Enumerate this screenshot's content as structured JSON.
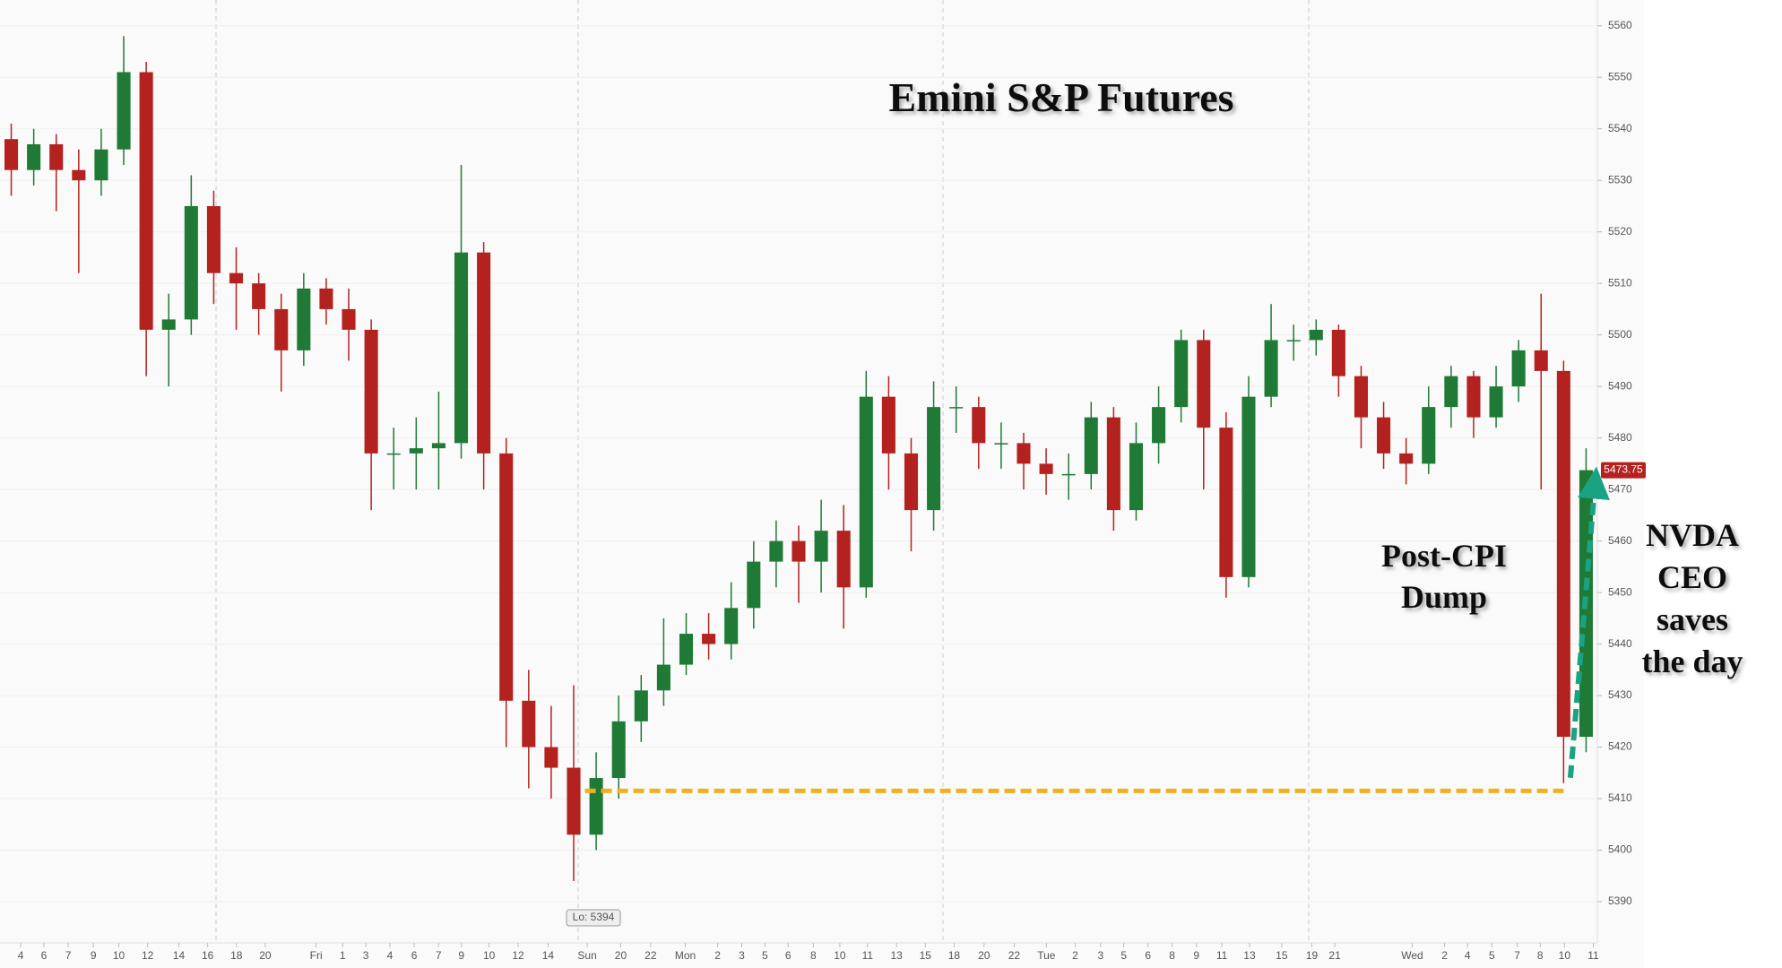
{
  "chart_data": {
    "type": "candlestick",
    "title": "Emini S&P Futures",
    "open": [
      5538,
      5532,
      5537,
      5532,
      5530,
      5536,
      5551,
      5501,
      5503,
      5525,
      5512,
      5510,
      5505,
      5497,
      5509,
      5505,
      5501,
      5477,
      5477,
      5478,
      5479,
      5516,
      5477,
      5429,
      5420,
      5416,
      5403,
      5414,
      5425,
      5431,
      5436,
      5442,
      5440,
      5447,
      5456,
      5460,
      5456,
      5462,
      5451,
      5488,
      5477,
      5466,
      5486,
      5486,
      5479,
      5479,
      5475,
      5473,
      5473,
      5484,
      5466,
      5479,
      5486,
      5499,
      5482,
      5453,
      5488,
      5499,
      5499,
      5501,
      5492,
      5484,
      5477,
      5475,
      5486,
      5492,
      5484,
      5490,
      5497,
      5493,
      5422
    ],
    "high": [
      5541,
      5540,
      5539,
      5536,
      5540,
      5558,
      5553,
      5508,
      5531,
      5528,
      5517,
      5512,
      5508,
      5512,
      5511,
      5509,
      5503,
      5482,
      5484,
      5489,
      5533,
      5518,
      5480,
      5435,
      5428,
      5432,
      5419,
      5430,
      5434,
      5445,
      5446,
      5446,
      5452,
      5460,
      5464,
      5463,
      5468,
      5467,
      5493,
      5492,
      5480,
      5491,
      5490,
      5488,
      5483,
      5481,
      5478,
      5477,
      5487,
      5486,
      5483,
      5490,
      5501,
      5501,
      5485,
      5492,
      5506,
      5502,
      5503,
      5502,
      5494,
      5487,
      5480,
      5490,
      5494,
      5493,
      5494,
      5499,
      5508,
      5495,
      5478
    ],
    "low": [
      5527,
      5529,
      5524,
      5512,
      5527,
      5533,
      5492,
      5490,
      5500,
      5506,
      5501,
      5500,
      5489,
      5494,
      5502,
      5495,
      5466,
      5470,
      5470,
      5470,
      5476,
      5470,
      5420,
      5412,
      5410,
      5394,
      5400,
      5410,
      5421,
      5428,
      5434,
      5437,
      5437,
      5443,
      5451,
      5448,
      5450,
      5443,
      5449,
      5470,
      5458,
      5462,
      5481,
      5474,
      5474,
      5470,
      5469,
      5468,
      5470,
      5462,
      5464,
      5475,
      5483,
      5470,
      5449,
      5451,
      5486,
      5495,
      5496,
      5488,
      5478,
      5474,
      5471,
      5473,
      5482,
      5480,
      5482,
      5487,
      5470,
      5413,
      5419
    ],
    "close": [
      5532,
      5537,
      5532,
      5530,
      5536,
      5551,
      5501,
      5503,
      5525,
      5512,
      5510,
      5505,
      5497,
      5509,
      5505,
      5501,
      5477,
      5477,
      5478,
      5479,
      5516,
      5477,
      5429,
      5420,
      5416,
      5403,
      5414,
      5425,
      5431,
      5436,
      5442,
      5440,
      5447,
      5456,
      5460,
      5456,
      5462,
      5451,
      5488,
      5477,
      5466,
      5486,
      5486,
      5479,
      5479,
      5475,
      5473,
      5473,
      5484,
      5466,
      5479,
      5486,
      5499,
      5482,
      5453,
      5488,
      5499,
      5499,
      5501,
      5492,
      5484,
      5477,
      5475,
      5486,
      5492,
      5484,
      5490,
      5497,
      5493,
      5422,
      5473.75
    ],
    "colors": {
      "up": "#1f7a35",
      "down": "#b3221f"
    },
    "xlim": [
      0,
      71
    ],
    "xticks": [
      {
        "value": 0.92,
        "label": "4"
      },
      {
        "value": 1.95,
        "label": "6"
      },
      {
        "value": 3.03,
        "label": "7"
      },
      {
        "value": 4.15,
        "label": "9"
      },
      {
        "value": 5.28,
        "label": "10"
      },
      {
        "value": 6.56,
        "label": "12"
      },
      {
        "value": 7.95,
        "label": "14"
      },
      {
        "value": 9.23,
        "label": "16"
      },
      {
        "value": 10.51,
        "label": "18"
      },
      {
        "value": 11.79,
        "label": "20"
      },
      {
        "value": 14.05,
        "label": "Fri"
      },
      {
        "value": 15.23,
        "label": "1"
      },
      {
        "value": 16.26,
        "label": "3"
      },
      {
        "value": 17.33,
        "label": "4"
      },
      {
        "value": 18.41,
        "label": "6"
      },
      {
        "value": 19.49,
        "label": "7"
      },
      {
        "value": 20.51,
        "label": "9"
      },
      {
        "value": 21.74,
        "label": "10"
      },
      {
        "value": 23.03,
        "label": "12"
      },
      {
        "value": 24.36,
        "label": "14"
      },
      {
        "value": 26.1,
        "label": "Sun"
      },
      {
        "value": 27.59,
        "label": "20"
      },
      {
        "value": 28.92,
        "label": "22"
      },
      {
        "value": 30.46,
        "label": "Mon"
      },
      {
        "value": 31.9,
        "label": "2"
      },
      {
        "value": 32.97,
        "label": "3"
      },
      {
        "value": 34,
        "label": "5"
      },
      {
        "value": 35.03,
        "label": "6"
      },
      {
        "value": 36.15,
        "label": "8"
      },
      {
        "value": 37.33,
        "label": "10"
      },
      {
        "value": 38.56,
        "label": "11"
      },
      {
        "value": 39.85,
        "label": "13"
      },
      {
        "value": 41.13,
        "label": "15"
      },
      {
        "value": 42.41,
        "label": "18"
      },
      {
        "value": 43.74,
        "label": "20"
      },
      {
        "value": 45.08,
        "label": "22"
      },
      {
        "value": 46.51,
        "label": "Tue"
      },
      {
        "value": 47.79,
        "label": "2"
      },
      {
        "value": 48.92,
        "label": "3"
      },
      {
        "value": 49.95,
        "label": "5"
      },
      {
        "value": 51.03,
        "label": "6"
      },
      {
        "value": 52.1,
        "label": "8"
      },
      {
        "value": 53.18,
        "label": "9"
      },
      {
        "value": 54.31,
        "label": "11"
      },
      {
        "value": 55.54,
        "label": "13"
      },
      {
        "value": 56.97,
        "label": "15"
      },
      {
        "value": 58.31,
        "label": "19"
      },
      {
        "value": 59.33,
        "label": "21"
      },
      {
        "value": 62.77,
        "label": "Wed"
      },
      {
        "value": 64.21,
        "label": "2"
      },
      {
        "value": 65.23,
        "label": "4"
      },
      {
        "value": 66.31,
        "label": "5"
      },
      {
        "value": 67.44,
        "label": "7"
      },
      {
        "value": 68.46,
        "label": "8"
      },
      {
        "value": 69.54,
        "label": "10"
      },
      {
        "value": 70.82,
        "label": "11"
      }
    ],
    "ylim": [
      5382,
      5565
    ],
    "yticks": [
      5390,
      5400,
      5410,
      5420,
      5430,
      5440,
      5450,
      5460,
      5470,
      5480,
      5490,
      5500,
      5510,
      5520,
      5530,
      5540,
      5550,
      5560
    ],
    "grid": true,
    "low_label": "Lo: 5394",
    "support_level": 5411.5,
    "annotations": [
      {
        "lines": [
          "Post-CPI",
          "Dump"
        ]
      },
      {
        "lines": [
          "NVDA",
          "CEO",
          "saves",
          "the day"
        ]
      }
    ]
  }
}
